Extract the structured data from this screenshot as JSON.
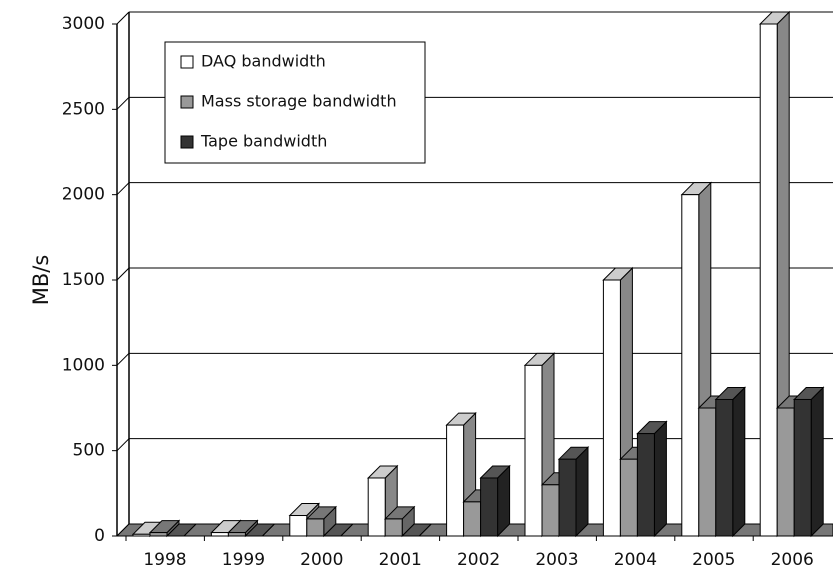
{
  "chart_data": {
    "type": "bar3d",
    "y_label": "MB/s",
    "categories": [
      "1998",
      "1999",
      "2000",
      "2001",
      "2002",
      "2003",
      "2004",
      "2005",
      "2006"
    ],
    "series": [
      {
        "name": "DAQ bandwidth",
        "color": "#ffffff",
        "values": [
          10,
          20,
          120,
          340,
          650,
          1000,
          1500,
          2000,
          3000
        ]
      },
      {
        "name": "Mass storage bandwidth",
        "color": "#999999",
        "values": [
          20,
          20,
          100,
          100,
          200,
          300,
          450,
          750,
          750
        ]
      },
      {
        "name": "Tape bandwidth",
        "color": "#333333",
        "values": [
          0,
          0,
          0,
          0,
          340,
          450,
          600,
          800,
          800
        ]
      }
    ],
    "ylim": [
      0,
      3000
    ],
    "yticks": [
      0,
      500,
      1000,
      1500,
      2000,
      2500,
      3000
    ],
    "grid": true,
    "legend": "upper left"
  }
}
